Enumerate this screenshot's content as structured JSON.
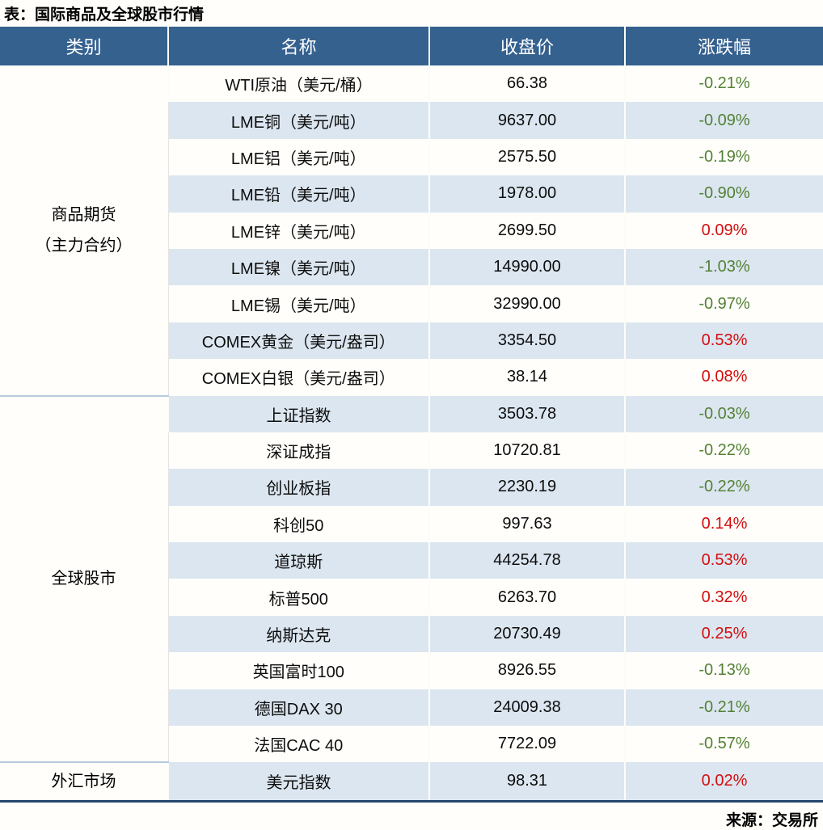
{
  "title": "表：国际商品及全球股市行情",
  "source": "来源：交易所",
  "chart_data": {
    "type": "table",
    "title": "表：国际商品及全球股市行情",
    "source": "来源：交易所",
    "columns": [
      "类别",
      "名称",
      "收盘价",
      "涨跌幅"
    ],
    "sections": [
      {
        "category": "商品期货\n（主力合约）",
        "rows": [
          {
            "name": "WTI原油（美元/桶）",
            "close": "66.38",
            "change": "-0.21%"
          },
          {
            "name": "LME铜（美元/吨）",
            "close": "9637.00",
            "change": "-0.09%"
          },
          {
            "name": "LME铝（美元/吨）",
            "close": "2575.50",
            "change": "-0.19%"
          },
          {
            "name": "LME铅（美元/吨）",
            "close": "1978.00",
            "change": "-0.90%"
          },
          {
            "name": "LME锌（美元/吨）",
            "close": "2699.50",
            "change": "0.09%"
          },
          {
            "name": "LME镍（美元/吨）",
            "close": "14990.00",
            "change": "-1.03%"
          },
          {
            "name": "LME锡（美元/吨）",
            "close": "32990.00",
            "change": "-0.97%"
          },
          {
            "name": "COMEX黄金（美元/盎司）",
            "close": "3354.50",
            "change": "0.53%"
          },
          {
            "name": "COMEX白银（美元/盎司）",
            "close": "38.14",
            "change": "0.08%"
          }
        ]
      },
      {
        "category": "全球股市",
        "rows": [
          {
            "name": "上证指数",
            "close": "3503.78",
            "change": "-0.03%"
          },
          {
            "name": "深证成指",
            "close": "10720.81",
            "change": "-0.22%"
          },
          {
            "name": "创业板指",
            "close": "2230.19",
            "change": "-0.22%"
          },
          {
            "name": "科创50",
            "close": "997.63",
            "change": "0.14%"
          },
          {
            "name": "道琼斯",
            "close": "44254.78",
            "change": "0.53%"
          },
          {
            "name": "标普500",
            "close": "6263.70",
            "change": "0.32%"
          },
          {
            "name": "纳斯达克",
            "close": "20730.49",
            "change": "0.25%"
          },
          {
            "name": "英国富时100",
            "close": "8926.55",
            "change": "-0.13%"
          },
          {
            "name": "德国DAX 30",
            "close": "24009.38",
            "change": "-0.21%"
          },
          {
            "name": "法国CAC 40",
            "close": "7722.09",
            "change": "-0.57%"
          }
        ]
      },
      {
        "category": "外汇市场",
        "rows": [
          {
            "name": "美元指数",
            "close": "98.31",
            "change": "0.02%"
          }
        ]
      }
    ],
    "colors": {
      "header_bg": "#35618f",
      "header_text": "#ffffff",
      "stripe": "#dce6f0",
      "up_red": "#d20d0d",
      "down_green": "#538135",
      "bottom_border": "#24466e",
      "section_divider": "#b9cbdd"
    },
    "layout_hints": {
      "up_means": "red (Chinese market convention: positive change in red)",
      "down_means": "green (negative change in green)",
      "banding": "alternating white / light-blue rows"
    }
  }
}
